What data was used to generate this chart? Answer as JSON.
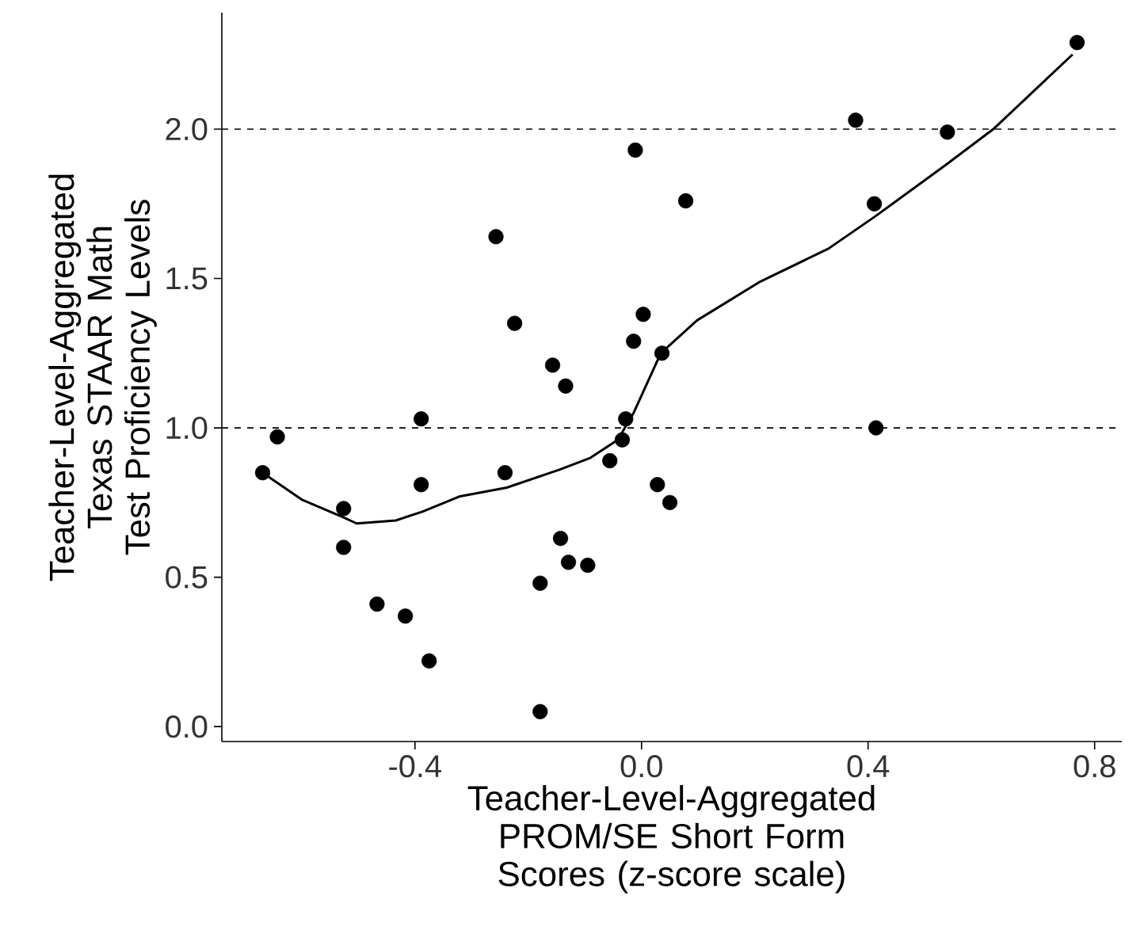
{
  "chart_data": {
    "type": "scatter",
    "xlabel": "Teacher-Level-Aggregated PROM/SE Short Form Scores (z-score scale)",
    "ylabel": "Teacher-Level-Aggregated Texas STAAR Math Test Proficiency Levels",
    "xlim": [
      -0.741,
      0.848
    ],
    "ylim": [
      -0.05,
      2.39
    ],
    "xticks": [
      {
        "value": -0.4,
        "label": "-0.4"
      },
      {
        "value": 0.0,
        "label": "0.0"
      },
      {
        "value": 0.4,
        "label": "0.4"
      },
      {
        "value": 0.8,
        "label": "0.8"
      }
    ],
    "yticks": [
      {
        "value": 0.0,
        "label": "0.0"
      },
      {
        "value": 0.5,
        "label": "0.5"
      },
      {
        "value": 1.0,
        "label": "1.0"
      },
      {
        "value": 1.5,
        "label": "1.5"
      },
      {
        "value": 2.0,
        "label": "2.0"
      }
    ],
    "series": [
      {
        "color": "#000000",
        "marker": "circle",
        "x": [
          -0.669,
          -0.643,
          -0.526,
          -0.526,
          -0.467,
          -0.417,
          -0.389,
          -0.389,
          -0.375,
          -0.257,
          -0.241,
          -0.224,
          -0.179,
          -0.179,
          -0.157,
          -0.143,
          -0.134,
          -0.129,
          -0.095,
          -0.056,
          -0.034,
          -0.028,
          -0.014,
          -0.011,
          0.003,
          0.028,
          0.036,
          0.05,
          0.078,
          0.378,
          0.411,
          0.414,
          0.54,
          0.769
        ],
        "values": [
          0.85,
          0.97,
          0.73,
          0.6,
          0.41,
          0.37,
          1.03,
          0.81,
          0.22,
          1.64,
          0.85,
          1.35,
          0.48,
          0.05,
          1.21,
          0.63,
          1.14,
          0.55,
          0.54,
          0.89,
          0.96,
          1.03,
          1.29,
          1.93,
          1.38,
          0.81,
          1.25,
          0.75,
          1.76,
          2.03,
          1.75,
          1.0,
          1.99,
          2.29
        ]
      },
      {
        "type": "line",
        "color": "#000000",
        "marker": "none",
        "line_style": "solid",
        "x": [
          -0.669,
          -0.6,
          -0.526,
          -0.503,
          -0.434,
          -0.386,
          -0.322,
          -0.238,
          -0.145,
          -0.09,
          -0.042,
          -0.014,
          0.034,
          0.098,
          0.21,
          0.33,
          0.414,
          0.537,
          0.621,
          0.677,
          0.761
        ],
        "values": [
          0.85,
          0.76,
          0.7,
          0.68,
          0.69,
          0.72,
          0.77,
          0.8,
          0.86,
          0.9,
          0.96,
          1.05,
          1.25,
          1.36,
          1.49,
          1.6,
          1.71,
          1.88,
          2.0,
          2.1,
          2.25
        ]
      }
    ],
    "ref_lines": [
      {
        "axis": "y",
        "value": 1.0,
        "line_style": "dashed",
        "color": "#000000"
      },
      {
        "axis": "y",
        "value": 2.0,
        "line_style": "dashed",
        "color": "#000000"
      }
    ]
  }
}
